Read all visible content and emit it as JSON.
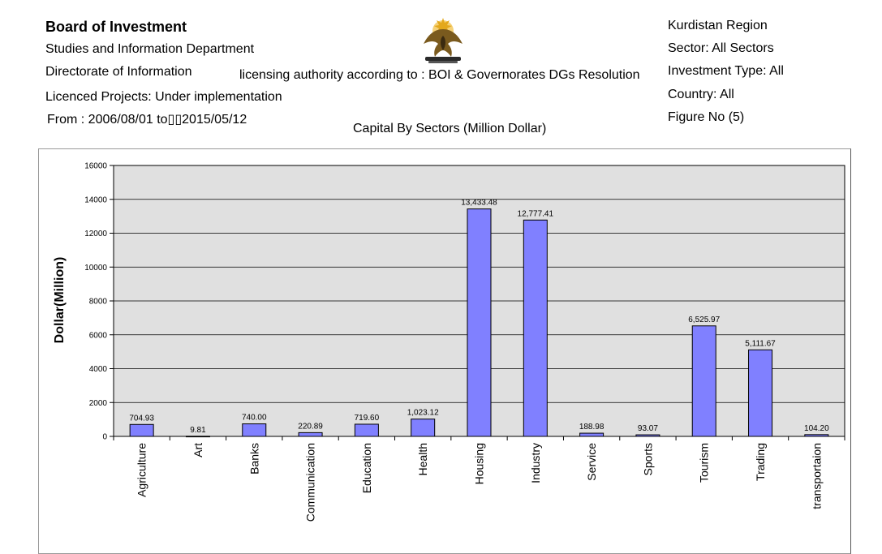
{
  "header": {
    "org": "Board of Investment",
    "department": "Studies and Information Department",
    "directorate": "Directorate of Information",
    "authority": "licensing authority according to : BOI & Governorates DGs Resolution",
    "licensed": "Licenced Projects: Under implementation",
    "period": "From :  2006/08/01   to▯▯2015/05/12",
    "caption": "Capital By Sectors (Million Dollar)"
  },
  "filters": {
    "region": "Kurdistan Region",
    "sector": "Sector: All Sectors",
    "investment_type": "Investment Type: All",
    "country": "Country: All",
    "figure": "Figure No (5)"
  },
  "chart_data": {
    "type": "bar",
    "title": "",
    "xlabel": "",
    "ylabel": "Dollar(Million)",
    "ylim": [
      0,
      16000
    ],
    "yticks": [
      0,
      2000,
      4000,
      6000,
      8000,
      10000,
      12000,
      14000,
      16000
    ],
    "grid": true,
    "bar_color": "#8080ff",
    "background": "#e0e0e0",
    "categories": [
      "Agriculture",
      "Art",
      "Banks",
      "Communication",
      "Education",
      "Health",
      "Housing",
      "Industry",
      "Service",
      "Sports",
      "Tourism",
      "Trading",
      "transportaion"
    ],
    "values": [
      704.93,
      9.81,
      740.0,
      220.89,
      719.6,
      1023.12,
      13433.48,
      12777.41,
      188.98,
      93.07,
      6525.97,
      5111.67,
      104.2
    ],
    "labels": [
      "704.93",
      "9.81",
      "740.00",
      "220.89",
      "719.60",
      "1,023.12",
      "13,433.48",
      "12,777.41",
      "188.98",
      "93.07",
      "6,525.97",
      "5,111.67",
      "104.20"
    ]
  }
}
